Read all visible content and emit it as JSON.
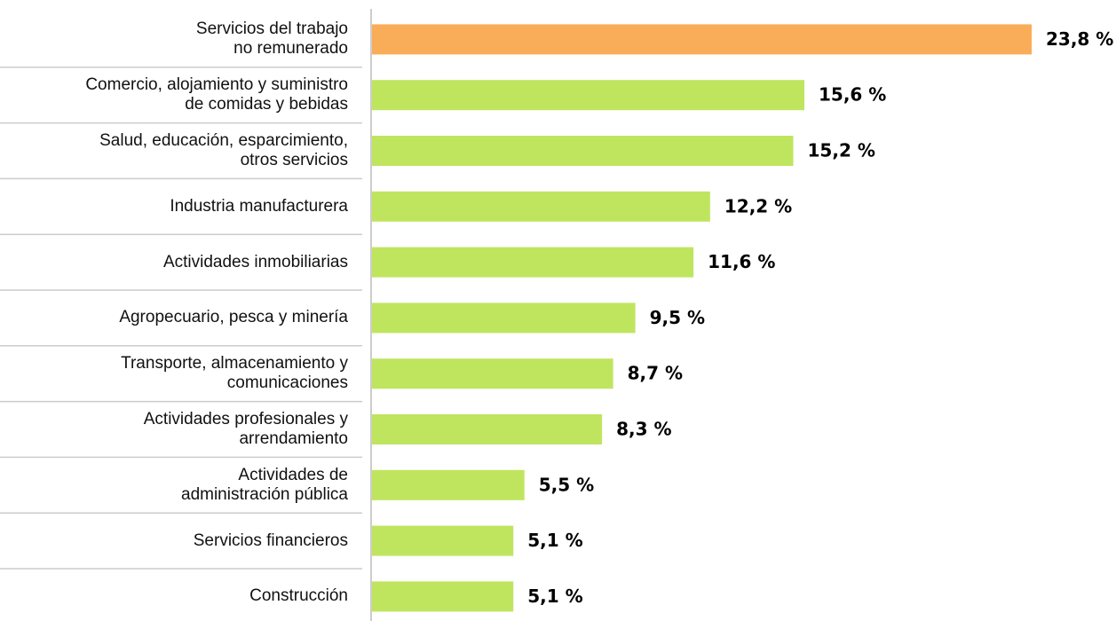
{
  "chart_data": {
    "type": "hbar",
    "categories": [
      "Servicios del trabajo\nno remunerado",
      "Comercio, alojamiento y suministro\nde comidas y bebidas",
      "Salud, educación, esparcimiento,\notros servicios",
      "Industria manufacturera",
      "Actividades inmobiliarias",
      "Agropecuario, pesca y minería",
      "Transporte, almacenamiento y\ncomunicaciones",
      "Actividades profesionales y\narrendamiento",
      "Actividades de\nadministración pública",
      "Servicios financieros",
      "Construcción"
    ],
    "values": [
      23.8,
      15.6,
      15.2,
      12.2,
      11.6,
      9.5,
      8.7,
      8.3,
      5.5,
      5.1,
      5.1
    ],
    "value_labels": [
      "23,8 %",
      "15,6 %",
      "15,2 %",
      "12,2 %",
      "11,6 %",
      "9,5 %",
      "8,7 %",
      "8,3 %",
      "5,5 %",
      "5,1 %",
      "5,1 %"
    ],
    "colors": [
      "#f9ad58",
      "#bfe55f",
      "#bfe55f",
      "#bfe55f",
      "#bfe55f",
      "#bfe55f",
      "#bfe55f",
      "#bfe55f",
      "#bfe55f",
      "#bfe55f",
      "#bfe55f"
    ]
  }
}
